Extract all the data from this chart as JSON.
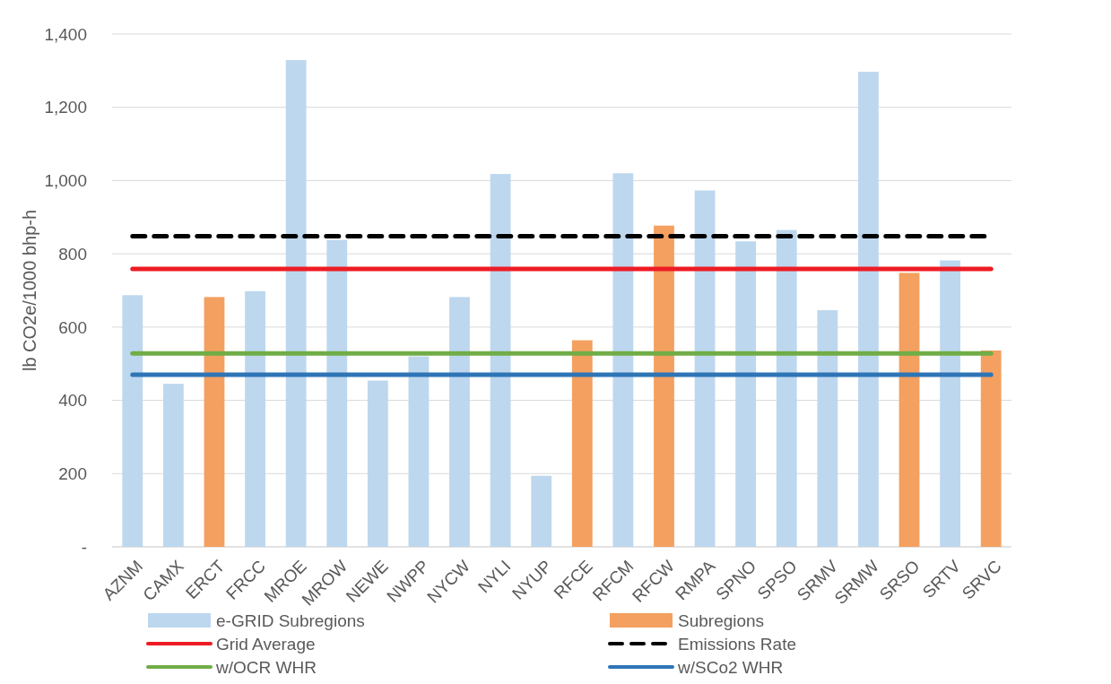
{
  "chart_data": {
    "type": "bar",
    "stacked": true,
    "ylabel": "lb CO2e/1000 bhp-h",
    "categories": [
      "AZNM",
      "CAMX",
      "ERCT",
      "FRCC",
      "MROE",
      "MROW",
      "NEWE",
      "NWPP",
      "NYCW",
      "NYLI",
      "NYUP",
      "RFCE",
      "RFCM",
      "RFCW",
      "RMPA",
      "SPNO",
      "SPSO",
      "SRMV",
      "SRMW",
      "SRSO",
      "SRTV",
      "SRVC"
    ],
    "series": [
      {
        "name": "e-GRID Subregions",
        "color": "#bdd7ee",
        "values": [
          687,
          445,
          null,
          698,
          1329,
          838,
          454,
          520,
          682,
          1018,
          194,
          null,
          1020,
          null,
          973,
          834,
          865,
          646,
          1297,
          null,
          782,
          null
        ]
      },
      {
        "name": "Subregions",
        "color": "#f4a060",
        "values": [
          null,
          null,
          682,
          null,
          null,
          null,
          null,
          null,
          null,
          null,
          null,
          564,
          null,
          877,
          null,
          null,
          null,
          null,
          null,
          748,
          null,
          536
        ]
      }
    ],
    "ylim": [
      0,
      1400
    ],
    "yticks": [
      {
        "value": 0,
        "label": "-"
      },
      200,
      400,
      600,
      800,
      {
        "value": 1000,
        "label": "1,000"
      },
      {
        "value": 1200,
        "label": "1,200"
      },
      {
        "value": 1400,
        "label": "1,400"
      }
    ],
    "grid": "y",
    "legend": "bottom",
    "ref_lines": [
      {
        "axis": "y",
        "value": 759,
        "label": "Grid Average",
        "color": "#ed1c24",
        "line_style": "solid"
      },
      {
        "axis": "y",
        "value": 848,
        "label": "Emissions Rate",
        "color": "#000000",
        "line_style": "dashed"
      },
      {
        "axis": "y",
        "value": 528,
        "label": "w/OCR WHR",
        "color": "#70ad47",
        "line_style": "solid"
      },
      {
        "axis": "y",
        "value": 470,
        "label": "w/SCo2 WHR",
        "color": "#2e75b6",
        "line_style": "solid"
      }
    ]
  }
}
